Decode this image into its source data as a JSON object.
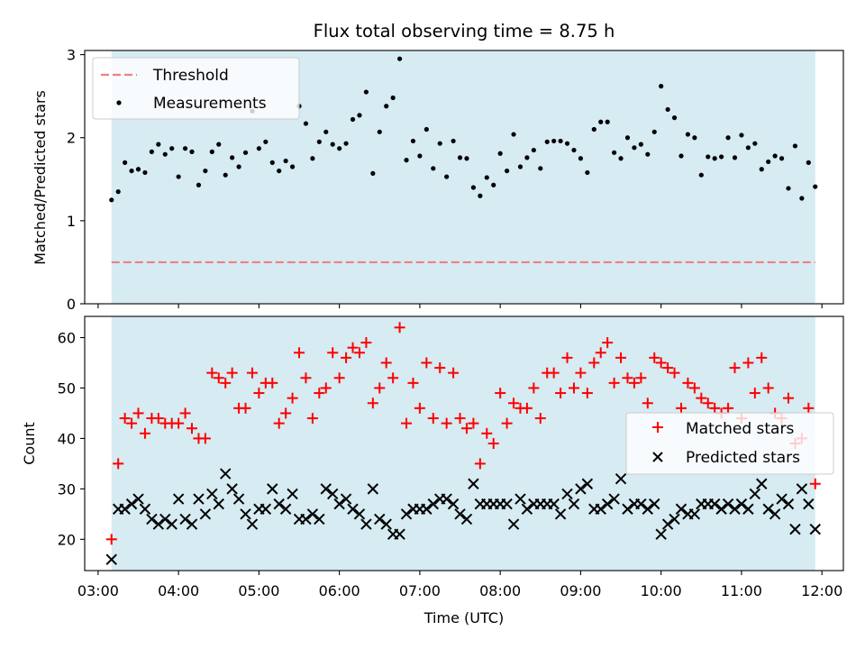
{
  "title": "Flux total observing time = 8.75 h",
  "chart_data": [
    {
      "type": "scatter",
      "ylabel": "Matched/Predicted stars",
      "ylim": [
        0,
        3.05
      ],
      "yticks": [
        0,
        1,
        2,
        3
      ],
      "xlim": [
        "02:50",
        "12:16"
      ],
      "shaded_span": [
        "03:10",
        "11:55"
      ],
      "threshold": 0.5,
      "legend_position": "upper-left",
      "legend": [
        {
          "label": "Threshold",
          "kind": "dashed-line",
          "color": "#f08080"
        },
        {
          "label": "Measurements",
          "kind": "dot",
          "color": "#000000"
        }
      ],
      "series": [
        {
          "name": "Measurements",
          "x": [
            "03:10",
            "03:15",
            "03:20",
            "03:25",
            "03:30",
            "03:35",
            "03:40",
            "03:45",
            "03:50",
            "03:55",
            "04:00",
            "04:05",
            "04:10",
            "04:15",
            "04:20",
            "04:25",
            "04:30",
            "04:35",
            "04:40",
            "04:45",
            "04:50",
            "04:55",
            "05:00",
            "05:05",
            "05:10",
            "05:15",
            "05:20",
            "05:25",
            "05:30",
            "05:35",
            "05:40",
            "05:45",
            "05:50",
            "05:55",
            "06:00",
            "06:05",
            "06:10",
            "06:15",
            "06:20",
            "06:25",
            "06:30",
            "06:35",
            "06:40",
            "06:45",
            "06:50",
            "06:55",
            "07:00",
            "07:05",
            "07:10",
            "07:15",
            "07:20",
            "07:25",
            "07:30",
            "07:35",
            "07:40",
            "07:45",
            "07:50",
            "07:55",
            "08:00",
            "08:05",
            "08:10",
            "08:15",
            "08:20",
            "08:25",
            "08:30",
            "08:35",
            "08:40",
            "08:45",
            "08:50",
            "08:55",
            "09:00",
            "09:05",
            "09:10",
            "09:15",
            "09:20",
            "09:25",
            "09:30",
            "09:35",
            "09:40",
            "09:45",
            "09:50",
            "09:55",
            "10:00",
            "10:05",
            "10:10",
            "10:15",
            "10:20",
            "10:25",
            "10:30",
            "10:35",
            "10:40",
            "10:45",
            "10:50",
            "10:55",
            "11:00",
            "11:05",
            "11:10",
            "11:15",
            "11:20",
            "11:25",
            "11:30",
            "11:35",
            "11:40",
            "11:45",
            "11:50",
            "11:55"
          ],
          "y": [
            1.25,
            1.35,
            1.7,
            1.6,
            1.62,
            1.58,
            1.83,
            1.92,
            1.8,
            1.87,
            1.53,
            1.87,
            1.83,
            1.43,
            1.6,
            1.83,
            1.92,
            1.55,
            1.76,
            1.65,
            1.82,
            2.32,
            1.87,
            1.95,
            1.7,
            1.6,
            1.72,
            1.65,
            2.38,
            2.17,
            1.75,
            1.95,
            2.07,
            1.92,
            1.87,
            1.93,
            2.22,
            2.27,
            2.55,
            1.57,
            2.07,
            2.38,
            2.48,
            2.95,
            1.73,
            1.96,
            1.78,
            2.1,
            1.63,
            1.93,
            1.53,
            1.96,
            1.76,
            1.75,
            1.4,
            1.3,
            1.52,
            1.43,
            1.81,
            1.6,
            2.04,
            1.65,
            1.76,
            1.85,
            1.63,
            1.95,
            1.96,
            1.96,
            1.93,
            1.85,
            1.75,
            1.58,
            2.1,
            2.19,
            2.19,
            1.82,
            1.75,
            2.0,
            1.88,
            1.92,
            1.8,
            2.07,
            2.62,
            2.34,
            2.24,
            1.78,
            2.04,
            2.0,
            1.55,
            1.77,
            1.75,
            1.77,
            2.0,
            1.76,
            2.03,
            1.88,
            1.93,
            1.62,
            1.71,
            1.78,
            1.75,
            1.39,
            1.9,
            1.27,
            1.7,
            1.41
          ]
        }
      ]
    },
    {
      "type": "scatter",
      "xlabel": "Time (UTC)",
      "ylabel": "Count",
      "ylim": [
        13.8,
        64.2
      ],
      "yticks": [
        20,
        30,
        40,
        50,
        60
      ],
      "xlim": [
        "02:50",
        "12:16"
      ],
      "xticks": [
        "03:00",
        "04:00",
        "05:00",
        "06:00",
        "07:00",
        "08:00",
        "09:00",
        "10:00",
        "11:00",
        "12:00"
      ],
      "shaded_span": [
        "03:10",
        "11:55"
      ],
      "legend_position": "center-right",
      "legend": [
        {
          "label": "Matched stars",
          "kind": "plus",
          "color": "#ff0000"
        },
        {
          "label": "Predicted stars",
          "kind": "x",
          "color": "#000000"
        }
      ],
      "series": [
        {
          "name": "Matched stars",
          "x": [
            "03:10",
            "03:15",
            "03:20",
            "03:25",
            "03:30",
            "03:35",
            "03:40",
            "03:45",
            "03:50",
            "03:55",
            "04:00",
            "04:05",
            "04:10",
            "04:15",
            "04:20",
            "04:25",
            "04:30",
            "04:35",
            "04:40",
            "04:45",
            "04:50",
            "04:55",
            "05:00",
            "05:05",
            "05:10",
            "05:15",
            "05:20",
            "05:25",
            "05:30",
            "05:35",
            "05:40",
            "05:45",
            "05:50",
            "05:55",
            "06:00",
            "06:05",
            "06:10",
            "06:15",
            "06:20",
            "06:25",
            "06:30",
            "06:35",
            "06:40",
            "06:45",
            "06:50",
            "06:55",
            "07:00",
            "07:05",
            "07:10",
            "07:15",
            "07:20",
            "07:25",
            "07:30",
            "07:35",
            "07:40",
            "07:45",
            "07:50",
            "07:55",
            "08:00",
            "08:05",
            "08:10",
            "08:15",
            "08:20",
            "08:25",
            "08:30",
            "08:35",
            "08:40",
            "08:45",
            "08:50",
            "08:55",
            "09:00",
            "09:05",
            "09:10",
            "09:15",
            "09:20",
            "09:25",
            "09:30",
            "09:35",
            "09:40",
            "09:45",
            "09:50",
            "09:55",
            "10:00",
            "10:05",
            "10:10",
            "10:15",
            "10:20",
            "10:25",
            "10:30",
            "10:35",
            "10:40",
            "10:45",
            "10:50",
            "10:55",
            "11:00",
            "11:05",
            "11:10",
            "11:15",
            "11:20",
            "11:25",
            "11:30",
            "11:35",
            "11:40",
            "11:45",
            "11:50",
            "11:55"
          ],
          "y": [
            20,
            35,
            44,
            43,
            45,
            41,
            44,
            44,
            43,
            43,
            43,
            45,
            42,
            40,
            40,
            53,
            52,
            51,
            53,
            46,
            46,
            53,
            49,
            51,
            51,
            43,
            45,
            48,
            57,
            52,
            44,
            49,
            50,
            57,
            52,
            56,
            58,
            57,
            59,
            47,
            50,
            55,
            52,
            62,
            43,
            51,
            46,
            55,
            44,
            54,
            43,
            53,
            44,
            42,
            43,
            35,
            41,
            39,
            49,
            43,
            47,
            46,
            46,
            50,
            44,
            53,
            53,
            49,
            56,
            50,
            53,
            49,
            55,
            57,
            59,
            51,
            56,
            52,
            51,
            52,
            47,
            56,
            55,
            54,
            53,
            46,
            51,
            50,
            48,
            47,
            46,
            45,
            46,
            54,
            44,
            55,
            49,
            56,
            50,
            45,
            44,
            48,
            39,
            40,
            46,
            31
          ]
        },
        {
          "name": "Predicted stars",
          "x": [
            "03:10",
            "03:15",
            "03:20",
            "03:25",
            "03:30",
            "03:35",
            "03:40",
            "03:45",
            "03:50",
            "03:55",
            "04:00",
            "04:05",
            "04:10",
            "04:15",
            "04:20",
            "04:25",
            "04:30",
            "04:35",
            "04:40",
            "04:45",
            "04:50",
            "04:55",
            "05:00",
            "05:05",
            "05:10",
            "05:15",
            "05:20",
            "05:25",
            "05:30",
            "05:35",
            "05:40",
            "05:45",
            "05:50",
            "05:55",
            "06:00",
            "06:05",
            "06:10",
            "06:15",
            "06:20",
            "06:25",
            "06:30",
            "06:35",
            "06:40",
            "06:45",
            "06:50",
            "06:55",
            "07:00",
            "07:05",
            "07:10",
            "07:15",
            "07:20",
            "07:25",
            "07:30",
            "07:35",
            "07:40",
            "07:45",
            "07:50",
            "07:55",
            "08:00",
            "08:05",
            "08:10",
            "08:15",
            "08:20",
            "08:25",
            "08:30",
            "08:35",
            "08:40",
            "08:45",
            "08:50",
            "08:55",
            "09:00",
            "09:05",
            "09:10",
            "09:15",
            "09:20",
            "09:25",
            "09:30",
            "09:35",
            "09:40",
            "09:45",
            "09:50",
            "09:55",
            "10:00",
            "10:05",
            "10:10",
            "10:15",
            "10:20",
            "10:25",
            "10:30",
            "10:35",
            "10:40",
            "10:45",
            "10:50",
            "10:55",
            "11:00",
            "11:05",
            "11:10",
            "11:15",
            "11:20",
            "11:25",
            "11:30",
            "11:35",
            "11:40",
            "11:45",
            "11:50",
            "11:55"
          ],
          "y": [
            16,
            26,
            26,
            27,
            28,
            26,
            24,
            23,
            24,
            23,
            28,
            24,
            23,
            28,
            25,
            29,
            27,
            33,
            30,
            28,
            25,
            23,
            26,
            26,
            30,
            27,
            26,
            29,
            24,
            24,
            25,
            24,
            30,
            29,
            27,
            28,
            26,
            25,
            23,
            30,
            24,
            23,
            21,
            21,
            25,
            26,
            26,
            26,
            27,
            28,
            28,
            27,
            25,
            24,
            31,
            27,
            27,
            27,
            27,
            27,
            23,
            28,
            26,
            27,
            27,
            27,
            27,
            25,
            29,
            27,
            30,
            31,
            26,
            26,
            27,
            28,
            32,
            26,
            27,
            27,
            26,
            27,
            21,
            23,
            24,
            26,
            25,
            25,
            27,
            27,
            27,
            26,
            27,
            26,
            27,
            26,
            29,
            31,
            26,
            25,
            28,
            27,
            22,
            30,
            27,
            22
          ]
        }
      ]
    }
  ]
}
